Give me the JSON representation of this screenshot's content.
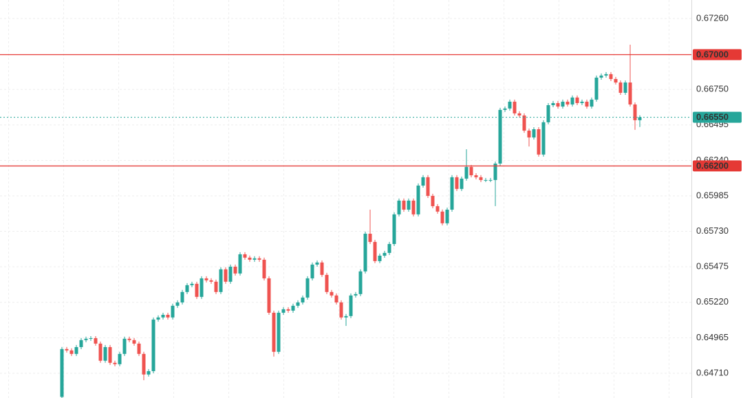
{
  "chart_data": {
    "type": "candlestick",
    "ylim": [
      0.64532,
      0.67393
    ],
    "yticks": [
      {
        "value": 0.6726,
        "label": "0.67260"
      },
      {
        "value": 0.6675,
        "label": "0.66750"
      },
      {
        "value": 0.66495,
        "label": "0.66495"
      },
      {
        "value": 0.6624,
        "label": "0.66240"
      },
      {
        "value": 0.65985,
        "label": "0.65985"
      },
      {
        "value": 0.6573,
        "label": "0.65730"
      },
      {
        "value": 0.65475,
        "label": "0.65475"
      },
      {
        "value": 0.6522,
        "label": "0.65220"
      },
      {
        "value": 0.64965,
        "label": "0.64965"
      },
      {
        "value": 0.6471,
        "label": "0.64710"
      }
    ],
    "grid": true,
    "up_color": "#26a69a",
    "down_color": "#ef5350",
    "levels": [
      {
        "value": 0.67,
        "label": "0.67000",
        "color": "#e53935",
        "style": "solid"
      },
      {
        "value": 0.662,
        "label": "0.66200",
        "color": "#e53935",
        "style": "solid"
      },
      {
        "value": 0.6655,
        "label": "0.66550",
        "color": "#26a69a",
        "style": "dotted"
      }
    ],
    "open": [
      0.6454,
      0.64884,
      0.64874,
      0.64849,
      0.64898,
      0.64948,
      0.64958,
      0.64962,
      0.64923,
      0.648,
      0.64898,
      0.64785,
      0.64775,
      0.64849,
      0.64958,
      0.64948,
      0.64923,
      0.64849,
      0.64701,
      0.64725,
      0.65096,
      0.65111,
      0.6513,
      0.65111,
      0.65195,
      0.65219,
      0.65294,
      0.65343,
      0.65353,
      0.65259,
      0.65392,
      0.65378,
      0.65368,
      0.65294,
      0.65457,
      0.65368,
      0.65476,
      0.65427,
      0.65565,
      0.65541,
      0.65526,
      0.65536,
      0.65526,
      0.65392,
      0.65145,
      0.64864,
      0.65145,
      0.6517,
      0.6516,
      0.65195,
      0.65219,
      0.65254,
      0.65392,
      0.65491,
      0.65506,
      0.65417,
      0.65294,
      0.65269,
      0.65219,
      0.65111,
      0.65121,
      0.65269,
      0.65279,
      0.65442,
      0.65713,
      0.65654,
      0.65516,
      0.65555,
      0.65575,
      0.65639,
      0.65852,
      0.65951,
      0.65886,
      0.65951,
      0.65852,
      0.66059,
      0.66119,
      0.65985,
      0.65911,
      0.65872,
      0.65788,
      0.65886,
      0.66119,
      0.66035,
      0.66109,
      0.66193,
      0.66133,
      0.66119,
      0.66099,
      0.66099,
      0.66099,
      0.66217,
      0.66603,
      0.66613,
      0.66662,
      0.66578,
      0.66563,
      0.66454,
      0.66405,
      0.66464,
      0.66282,
      0.66514,
      0.66637,
      0.66652,
      0.66627,
      0.66662,
      0.66642,
      0.66692,
      0.66652,
      0.66662,
      0.66627,
      0.66677,
      0.66835,
      0.6685,
      0.6686,
      0.66825,
      0.668,
      0.66726,
      0.668,
      0.66642,
      0.66529
    ],
    "high": [
      0.64899,
      0.64899,
      0.64889,
      0.64913,
      0.64963,
      0.64973,
      0.64977,
      0.64977,
      0.64938,
      0.64913,
      0.64913,
      0.648,
      0.64864,
      0.64973,
      0.64973,
      0.64963,
      0.64938,
      0.64864,
      0.6474,
      0.65111,
      0.65126,
      0.65145,
      0.65145,
      0.6521,
      0.65234,
      0.65309,
      0.65358,
      0.65368,
      0.65368,
      0.65407,
      0.65407,
      0.65393,
      0.65383,
      0.65472,
      0.65472,
      0.65491,
      0.65491,
      0.6558,
      0.6558,
      0.65556,
      0.65551,
      0.65551,
      0.65541,
      0.65407,
      0.6516,
      0.6516,
      0.65185,
      0.65185,
      0.6521,
      0.65234,
      0.65269,
      0.65407,
      0.65506,
      0.65521,
      0.65521,
      0.65432,
      0.65309,
      0.65284,
      0.65234,
      0.65136,
      0.65284,
      0.65294,
      0.65457,
      0.65728,
      0.65886,
      0.65669,
      0.6557,
      0.6559,
      0.65654,
      0.65867,
      0.65966,
      0.65966,
      0.65966,
      0.65966,
      0.66074,
      0.66134,
      0.66134,
      0.66,
      0.65926,
      0.65887,
      0.65901,
      0.66134,
      0.66134,
      0.66124,
      0.6632,
      0.66208,
      0.66148,
      0.66134,
      0.66114,
      0.66114,
      0.66232,
      0.66618,
      0.66628,
      0.66677,
      0.66677,
      0.66593,
      0.66578,
      0.66469,
      0.66479,
      0.66479,
      0.66529,
      0.66652,
      0.66667,
      0.66667,
      0.66677,
      0.66677,
      0.66707,
      0.66707,
      0.66677,
      0.66677,
      0.66692,
      0.6685,
      0.66865,
      0.66875,
      0.66875,
      0.6684,
      0.66815,
      0.66815,
      0.67072,
      0.66657,
      0.66565
    ],
    "low": [
      0.64532,
      0.64859,
      0.64834,
      0.64834,
      0.64883,
      0.64933,
      0.64943,
      0.64908,
      0.64785,
      0.64785,
      0.6477,
      0.6476,
      0.6476,
      0.64834,
      0.64933,
      0.64908,
      0.64834,
      0.6466,
      0.64686,
      0.6471,
      0.65081,
      0.65096,
      0.65096,
      0.65096,
      0.6518,
      0.65204,
      0.65279,
      0.65328,
      0.65244,
      0.65244,
      0.65363,
      0.65353,
      0.65279,
      0.65279,
      0.65353,
      0.65353,
      0.65412,
      0.65412,
      0.65526,
      0.65511,
      0.65511,
      0.65511,
      0.65377,
      0.6513,
      0.6483,
      0.64849,
      0.6513,
      0.65145,
      0.65145,
      0.6518,
      0.65204,
      0.65239,
      0.65377,
      0.65476,
      0.65402,
      0.65279,
      0.65254,
      0.65204,
      0.65096,
      0.6505,
      0.65106,
      0.65254,
      0.65264,
      0.65427,
      0.65639,
      0.65501,
      0.65501,
      0.6554,
      0.6556,
      0.65624,
      0.65837,
      0.65871,
      0.65871,
      0.65837,
      0.65837,
      0.66044,
      0.6597,
      0.65896,
      0.65857,
      0.65773,
      0.65773,
      0.65871,
      0.6602,
      0.6602,
      0.66094,
      0.66118,
      0.66104,
      0.66084,
      0.66084,
      0.66084,
      0.65911,
      0.66202,
      0.66588,
      0.66598,
      0.66563,
      0.66548,
      0.66439,
      0.6634,
      0.6639,
      0.66267,
      0.66267,
      0.66499,
      0.66622,
      0.66612,
      0.66612,
      0.66627,
      0.66627,
      0.66637,
      0.66637,
      0.66612,
      0.66612,
      0.66662,
      0.6682,
      0.66835,
      0.6681,
      0.66785,
      0.66711,
      0.66711,
      0.66627,
      0.6646,
      0.6648
    ],
    "close": [
      0.64884,
      0.64874,
      0.64849,
      0.64898,
      0.64948,
      0.64958,
      0.64962,
      0.64923,
      0.648,
      0.64898,
      0.64785,
      0.64775,
      0.64849,
      0.64958,
      0.64948,
      0.64923,
      0.64849,
      0.64701,
      0.64725,
      0.65096,
      0.65111,
      0.6513,
      0.65111,
      0.65195,
      0.65219,
      0.65294,
      0.65343,
      0.65353,
      0.65259,
      0.65392,
      0.65378,
      0.65368,
      0.65294,
      0.65457,
      0.65368,
      0.65476,
      0.65427,
      0.65565,
      0.65541,
      0.65526,
      0.65536,
      0.65526,
      0.65392,
      0.65145,
      0.64864,
      0.65145,
      0.6517,
      0.6516,
      0.65195,
      0.65219,
      0.65254,
      0.65392,
      0.65491,
      0.65506,
      0.65417,
      0.65294,
      0.65269,
      0.65219,
      0.65111,
      0.65121,
      0.65269,
      0.65279,
      0.65442,
      0.65713,
      0.65654,
      0.65516,
      0.65555,
      0.65575,
      0.65639,
      0.65852,
      0.65951,
      0.65886,
      0.65951,
      0.65852,
      0.66059,
      0.66119,
      0.65985,
      0.65911,
      0.65872,
      0.65788,
      0.65886,
      0.66119,
      0.66035,
      0.66109,
      0.66193,
      0.66133,
      0.66119,
      0.66099,
      0.66099,
      0.66099,
      0.66217,
      0.66603,
      0.66613,
      0.66662,
      0.66578,
      0.66563,
      0.66454,
      0.66405,
      0.66464,
      0.66282,
      0.66514,
      0.66637,
      0.66652,
      0.66627,
      0.66662,
      0.66642,
      0.66692,
      0.66652,
      0.66662,
      0.66627,
      0.66677,
      0.66835,
      0.6685,
      0.6686,
      0.66825,
      0.668,
      0.66726,
      0.668,
      0.66642,
      0.66529,
      0.6655
    ]
  }
}
